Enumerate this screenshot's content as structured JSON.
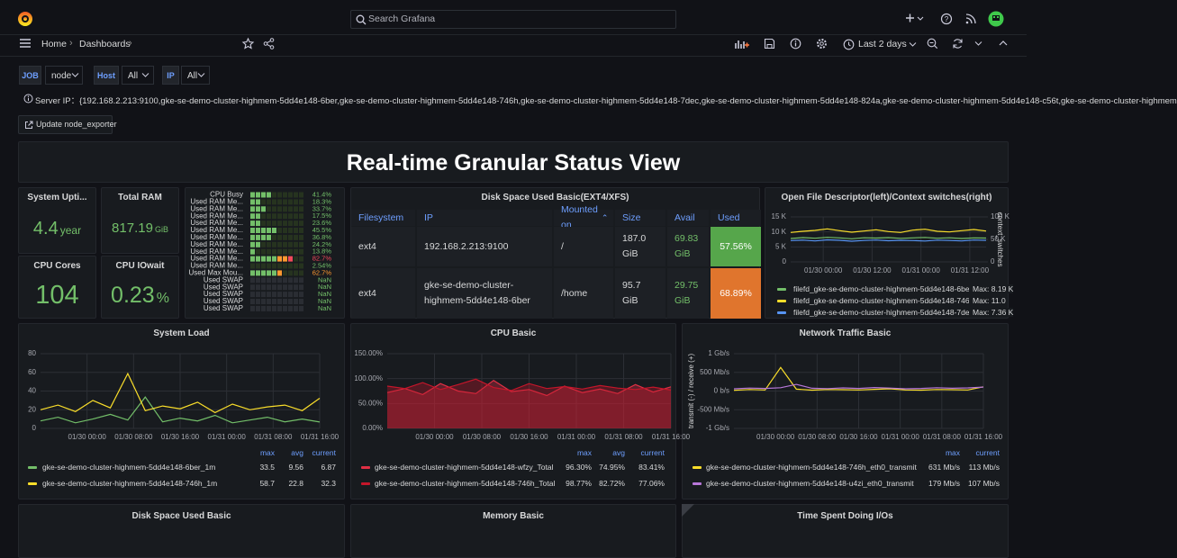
{
  "topbar": {
    "search_placeholder": "Search Grafana"
  },
  "breadcrumb": [
    "Home",
    "Dashboards"
  ],
  "time_range": "Last 2 days",
  "variables": [
    {
      "label": "JOB",
      "value": "node"
    },
    {
      "label": "Host",
      "value": "All"
    },
    {
      "label": "IP",
      "value": "All"
    }
  ],
  "server_ip": "Server IP：{192.168.2.213:9100,gke-se-demo-cluster-highmem-5dd4e148-6ber,gke-se-demo-cluster-highmem-5dd4e148-746h,gke-se-demo-cluster-highmem-5dd4e148-7dec,gke-se-demo-cluster-highmem-5dd4e148-824a,gke-se-demo-cluster-highmem-5dd4e148-c56t,gke-se-demo-cluster-highmem",
  "button": "Update node_exporter",
  "dashboard_title": "Real-time Granular Status View",
  "stats": [
    {
      "title": "System Upti...",
      "value": "4.4",
      "unit": "year"
    },
    {
      "title": "Total RAM",
      "value": "817.19",
      "unit": "GiB"
    },
    {
      "title": "CPU Cores",
      "value": "104"
    },
    {
      "title": "CPU IOwait",
      "value": "0.23",
      "unit": "%"
    }
  ],
  "bar_gauge": {
    "base_color": "#73bf69",
    "thresholds": [
      {
        "value": 60,
        "color": "#ff9830"
      },
      {
        "value": 80,
        "color": "#f2495c"
      }
    ],
    "rows": [
      {
        "label": "CPU Busy",
        "value": 41.4,
        "text": "41.4%"
      },
      {
        "label": "Used RAM Me...",
        "value": 18.3,
        "text": "18.3%"
      },
      {
        "label": "Used RAM Me...",
        "value": 33.7,
        "text": "33.7%"
      },
      {
        "label": "Used RAM Me...",
        "value": 17.5,
        "text": "17.5%"
      },
      {
        "label": "Used RAM Me...",
        "value": 23.6,
        "text": "23.6%"
      },
      {
        "label": "Used RAM Me...",
        "value": 45.5,
        "text": "45.5%"
      },
      {
        "label": "Used RAM Me...",
        "value": 36.8,
        "text": "36.8%"
      },
      {
        "label": "Used RAM Me...",
        "value": 24.2,
        "text": "24.2%"
      },
      {
        "label": "Used RAM Me...",
        "value": 13.8,
        "text": "13.8%"
      },
      {
        "label": "Used RAM Me...",
        "value": 82.7,
        "text": "82.7%"
      },
      {
        "label": "Used RAM Me...",
        "value": 2.54,
        "text": "2.54%"
      },
      {
        "label": "Used Max Mou...",
        "value": 62.7,
        "text": "62.7%"
      },
      {
        "label": "Used SWAP",
        "value": null,
        "text": "NaN"
      },
      {
        "label": "Used SWAP",
        "value": null,
        "text": "NaN"
      },
      {
        "label": "Used SWAP",
        "value": null,
        "text": "NaN"
      },
      {
        "label": "Used SWAP",
        "value": null,
        "text": "NaN"
      },
      {
        "label": "Used SWAP",
        "value": null,
        "text": "NaN"
      }
    ]
  },
  "disk_table": {
    "title": "Disk Space Used Basic(EXT4/XFS)",
    "columns": [
      "Filesystem",
      "IP",
      "Mounted on",
      "Size",
      "Avail",
      "Used"
    ],
    "status_colors": [
      "#56a64b",
      "#e0752d"
    ],
    "rows": [
      [
        "ext4",
        "192.168.2.213:9100",
        "/",
        "187.0 GiB",
        "69.83 GiB",
        "57.56%"
      ],
      [
        "ext4",
        "gke-se-demo-cluster-highmem-5dd4e148-6ber",
        "/home",
        "95.7 GiB",
        "29.75 GiB",
        "68.89%"
      ]
    ]
  },
  "charts": [
    {
      "title": "System Load",
      "type": "line",
      "grid": true,
      "x": [
        -8,
        -5,
        -2,
        1,
        4,
        7,
        10,
        13,
        16,
        19,
        22,
        25,
        28,
        31,
        34,
        37,
        40
      ],
      "xlim": [
        -8,
        40
      ],
      "xticks": [
        {
          "value": 0,
          "label": "01/30 00:00"
        },
        {
          "value": 8,
          "label": "01/30 08:00"
        },
        {
          "value": 16,
          "label": "01/30 16:00"
        },
        {
          "value": 24,
          "label": "01/31 00:00"
        },
        {
          "value": 32,
          "label": "01/31 08:00"
        },
        {
          "value": 40,
          "label": "01/31 16:00"
        }
      ],
      "ylim": [
        0,
        80
      ],
      "yticks": [
        0,
        20,
        40,
        60,
        80
      ],
      "legend_columns": [
        "max",
        "avg",
        "current"
      ],
      "series": [
        {
          "name": "gke-se-demo-cluster-highmem-5dd4e148-6ber_1m",
          "color": "#73bf69",
          "values": [
            8,
            12,
            6,
            10,
            15,
            9,
            33.5,
            7,
            11,
            8,
            14,
            6,
            9,
            12,
            7,
            10,
            6.87
          ],
          "stats": [
            "33.5",
            "9.56",
            "6.87"
          ]
        },
        {
          "name": "gke-se-demo-cluster-highmem-5dd4e148-746h_1m",
          "color": "#fade2a",
          "values": [
            20,
            25,
            18,
            30,
            22,
            58.7,
            19,
            24,
            21,
            28,
            17,
            26,
            20,
            23,
            25,
            19,
            32.3
          ],
          "stats": [
            "58.7",
            "22.8",
            "32.3"
          ]
        }
      ]
    },
    {
      "title": "CPU Basic",
      "type": "area",
      "grid": true,
      "x": [
        -8,
        -5,
        -2,
        1,
        4,
        7,
        10,
        13,
        16,
        19,
        22,
        25,
        28,
        31,
        34,
        37,
        40
      ],
      "xlim": [
        -8,
        40
      ],
      "xticks": [
        {
          "value": 0,
          "label": "01/30 00:00"
        },
        {
          "value": 8,
          "label": "01/30 08:00"
        },
        {
          "value": 16,
          "label": "01/30 16:00"
        },
        {
          "value": 24,
          "label": "01/31 00:00"
        },
        {
          "value": 32,
          "label": "01/31 08:00"
        },
        {
          "value": 40,
          "label": "01/31 16:00"
        }
      ],
      "ylim": [
        0,
        150
      ],
      "yticks": [
        {
          "value": 0,
          "label": "0.00%"
        },
        {
          "value": 50,
          "label": "50.00%"
        },
        {
          "value": 100,
          "label": "100.00%"
        },
        {
          "value": 150,
          "label": "150.00%"
        }
      ],
      "legend_columns": [
        "max",
        "avg",
        "current"
      ],
      "series": [
        {
          "name": "gke-se-demo-cluster-highmem-5dd4e148-wfzy_Total",
          "color": "#e02f44",
          "values": [
            72,
            80,
            68,
            90,
            75,
            70,
            96.3,
            74,
            78,
            66,
            85,
            72,
            79,
            70,
            88,
            73,
            83.41
          ],
          "stats": [
            "96.30%",
            "74.95%",
            "83.41%"
          ]
        },
        {
          "name": "gke-se-demo-cluster-highmem-5dd4e148-746h_Total",
          "color": "#c4162a",
          "values": [
            85,
            80,
            92,
            78,
            88,
            98.77,
            82,
            76,
            90,
            80,
            84,
            79,
            86,
            81,
            78,
            83,
            77.06
          ],
          "stats": [
            "98.77%",
            "82.72%",
            "77.06%"
          ]
        }
      ]
    },
    {
      "title": "Network Traffic Basic",
      "type": "line",
      "grid": true,
      "ylabel": "transmit (-) / receive (+)",
      "x": [
        -8,
        -5,
        -2,
        1,
        4,
        7,
        10,
        13,
        16,
        19,
        22,
        25,
        28,
        31,
        34,
        37,
        40
      ],
      "xlim": [
        -8,
        40
      ],
      "xticks": [
        {
          "value": 0,
          "label": "01/30 00:00"
        },
        {
          "value": 8,
          "label": "01/30 08:00"
        },
        {
          "value": 16,
          "label": "01/30 16:00"
        },
        {
          "value": 24,
          "label": "01/31 00:00"
        },
        {
          "value": 32,
          "label": "01/31 08:00"
        },
        {
          "value": 40,
          "label": "01/31 16:00"
        }
      ],
      "ylim": [
        -1000,
        1000
      ],
      "yticks": [
        {
          "value": -1000,
          "label": "-1 Gb/s"
        },
        {
          "value": -500,
          "label": "-500 Mb/s"
        },
        {
          "value": 0,
          "label": "0 b/s"
        },
        {
          "value": 500,
          "label": "500 Mb/s"
        },
        {
          "value": 1000,
          "label": "1 Gb/s"
        }
      ],
      "legend_columns": [
        "max",
        "current"
      ],
      "series": [
        {
          "name": "gke-se-demo-cluster-highmem-5dd4e148-746h_eth0_transmit",
          "color": "#fade2a",
          "values": [
            20,
            40,
            30,
            631,
            50,
            25,
            40,
            35,
            30,
            45,
            60,
            30,
            25,
            40,
            35,
            30,
            113
          ],
          "stats": [
            "631 Mb/s",
            "113 Mb/s"
          ]
        },
        {
          "name": "gke-se-demo-cluster-highmem-5dd4e148-u4zi_eth0_transmit",
          "color": "#b877d9",
          "values": [
            60,
            80,
            70,
            90,
            179,
            75,
            65,
            85,
            70,
            95,
            80,
            60,
            70,
            90,
            75,
            85,
            107
          ],
          "stats": [
            "179 Mb/s",
            "107 Mb/s"
          ]
        }
      ]
    },
    {
      "title": "Open File Descriptor(left)/Context switches(right)",
      "type": "line",
      "grid": true,
      "y2label": "context_switches",
      "x": [
        -8,
        -5,
        -2,
        1,
        4,
        7,
        10,
        13,
        16,
        19,
        22,
        25,
        28,
        31,
        34,
        37,
        40
      ],
      "xlim": [
        -8,
        40
      ],
      "xticks": [
        {
          "value": 0,
          "label": "01/30 00:00"
        },
        {
          "value": 12,
          "label": "01/30 12:00"
        },
        {
          "value": 24,
          "label": "01/31 00:00"
        },
        {
          "value": 36,
          "label": "01/31 12:00"
        }
      ],
      "ylim": [
        0,
        15000
      ],
      "yticks": [
        0,
        {
          "value": 5000,
          "label": "5 K"
        },
        {
          "value": 10000,
          "label": "10 K"
        },
        {
          "value": 15000,
          "label": "15 K"
        }
      ],
      "y2lim": [
        0,
        100000
      ],
      "y2ticks": [
        0,
        {
          "value": 50000,
          "label": "50 K"
        },
        {
          "value": 100000,
          "label": "100 K"
        }
      ],
      "series": [
        {
          "name": "filefd_gke-se-demo-cluster-highmem-5dd4e148-6ber",
          "color": "#73bf69",
          "values": [
            7800,
            8100,
            7900,
            8190,
            8000,
            7700,
            8050,
            7950,
            8100,
            7850,
            8000,
            8150,
            7900,
            8050,
            7800,
            8000,
            7950
          ],
          "stats": [
            "Max: 8.19 K"
          ]
        },
        {
          "name": "filefd_gke-se-demo-cluster-highmem-5dd4e148-746h",
          "color": "#fade2a",
          "values": [
            9800,
            10200,
            10500,
            11000,
            10400,
            9900,
            10300,
            10700,
            10100,
            9800,
            10600,
            10900,
            10200,
            10000,
            10400,
            10800,
            10300
          ],
          "stats": [
            "Max: 11.0"
          ]
        },
        {
          "name": "filefd_gke-se-demo-cluster-highmem-5dd4e148-7dec",
          "color": "#5794f2",
          "values": [
            7100,
            7250,
            7000,
            7360,
            7200,
            6900,
            7150,
            7300,
            7050,
            7200,
            7100,
            6950,
            7250,
            7150,
            7000,
            7300,
            7200
          ],
          "stats": [
            "Max: 7.36 K"
          ]
        }
      ]
    }
  ],
  "bottom_panels": [
    "Disk Space Used Basic",
    "Memory Basic",
    "Time Spent Doing I/Os"
  ]
}
